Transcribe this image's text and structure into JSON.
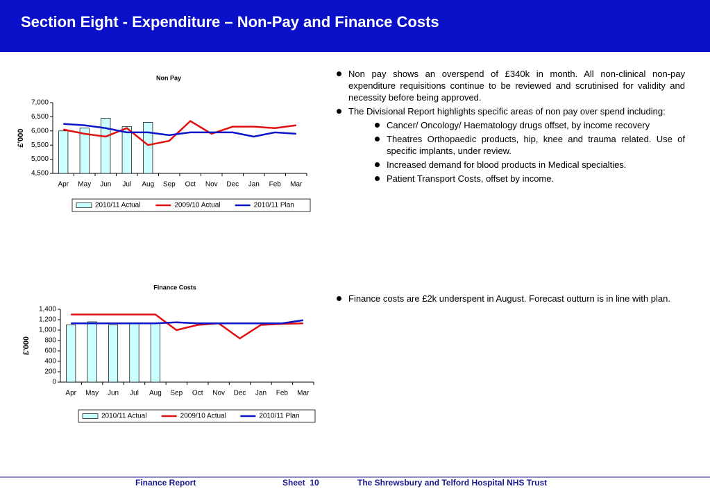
{
  "header": {
    "title": "Section Eight - Expenditure – Non-Pay and Finance Costs"
  },
  "chart_data": [
    {
      "type": "bar",
      "title": "Non Pay",
      "y_label": "£'000",
      "categories": [
        "Apr",
        "May",
        "Jun",
        "Jul",
        "Aug",
        "Sep",
        "Oct",
        "Nov",
        "Dec",
        "Jan",
        "Feb",
        "Mar"
      ],
      "ylim": [
        4500,
        7000
      ],
      "yticks": [
        {
          "value": 4500,
          "label": "4,500"
        },
        {
          "value": 5000,
          "label": "5,000"
        },
        {
          "value": 5500,
          "label": "5,500"
        },
        {
          "value": 6000,
          "label": "6,000"
        },
        {
          "value": 6500,
          "label": "6,500"
        },
        {
          "value": 7000,
          "label": "7,000"
        }
      ],
      "grid": false,
      "legend": "bottom",
      "series": [
        {
          "name": "2010/11 Actual",
          "type": "bar",
          "color": "#ccffff",
          "values": [
            6000,
            6100,
            6450,
            6150,
            6300,
            null,
            null,
            null,
            null,
            null,
            null,
            null
          ]
        },
        {
          "name": "2009/10 Actual",
          "type": "line",
          "color": "#e01010",
          "values": [
            6050,
            5900,
            5800,
            6100,
            5500,
            5650,
            6350,
            5900,
            6150,
            6150,
            6100,
            6200
          ]
        },
        {
          "name": "2010/11 Plan",
          "type": "line",
          "color": "#0a14c8",
          "values": [
            6250,
            6200,
            6100,
            5950,
            5950,
            5850,
            5950,
            5950,
            5950,
            5800,
            5950,
            5900
          ]
        }
      ]
    },
    {
      "type": "bar",
      "title": "Finance Costs",
      "y_label": "£'000",
      "categories": [
        "Apr",
        "May",
        "Jun",
        "Jul",
        "Aug",
        "Sep",
        "Oct",
        "Nov",
        "Dec",
        "Jan",
        "Feb",
        "Mar"
      ],
      "ylim": [
        0,
        1400
      ],
      "yticks": [
        0,
        200,
        400,
        600,
        800,
        {
          "value": 1000,
          "label": "1,000"
        },
        {
          "value": 1200,
          "label": "1,200"
        },
        {
          "value": 1400,
          "label": "1,400"
        }
      ],
      "grid": false,
      "legend": "bottom",
      "series": [
        {
          "name": "2010/11 Actual",
          "type": "bar",
          "color": "#ccffff",
          "values": [
            1100,
            1160,
            1100,
            1130,
            1130,
            null,
            null,
            null,
            null,
            null,
            null,
            null
          ]
        },
        {
          "name": "2009/10 Actual",
          "type": "line",
          "color": "#e01010",
          "values": [
            1300,
            1300,
            1300,
            1300,
            1300,
            1000,
            1100,
            1130,
            840,
            1100,
            1120,
            1130
          ]
        },
        {
          "name": "2010/11 Plan",
          "type": "line",
          "color": "#0a14c8",
          "values": [
            1130,
            1130,
            1130,
            1130,
            1130,
            1150,
            1130,
            1130,
            1130,
            1130,
            1130,
            1190
          ]
        }
      ]
    }
  ],
  "notes": [
    [
      {
        "level": 1,
        "text": "Non pay shows an overspend of £340k in month. All non-clinical non-pay expenditure requisitions continue to be reviewed and scrutinised for validity and necessity before being approved."
      },
      {
        "level": 1,
        "text": "The Divisional Report highlights specific areas of non pay over spend including:"
      },
      {
        "level": 2,
        "text": "Cancer/ Oncology/ Haematology drugs offset, by income recovery"
      },
      {
        "level": 2,
        "text": "Theatres Orthopaedic products, hip, knee and trauma related. Use of  specific implants, under review."
      },
      {
        "level": 2,
        "text": "Increased demand for blood products in Medical specialties."
      },
      {
        "level": 2,
        "text": "Patient Transport Costs, offset by income."
      }
    ],
    [
      {
        "level": 1,
        "text": "Finance costs are £2k underspent in August. Forecast outturn is in line with plan."
      }
    ]
  ],
  "footer": {
    "left": "Finance Report",
    "center": "Sheet  10",
    "right": "The Shrewsbury and Telford Hospital NHS Trust"
  }
}
